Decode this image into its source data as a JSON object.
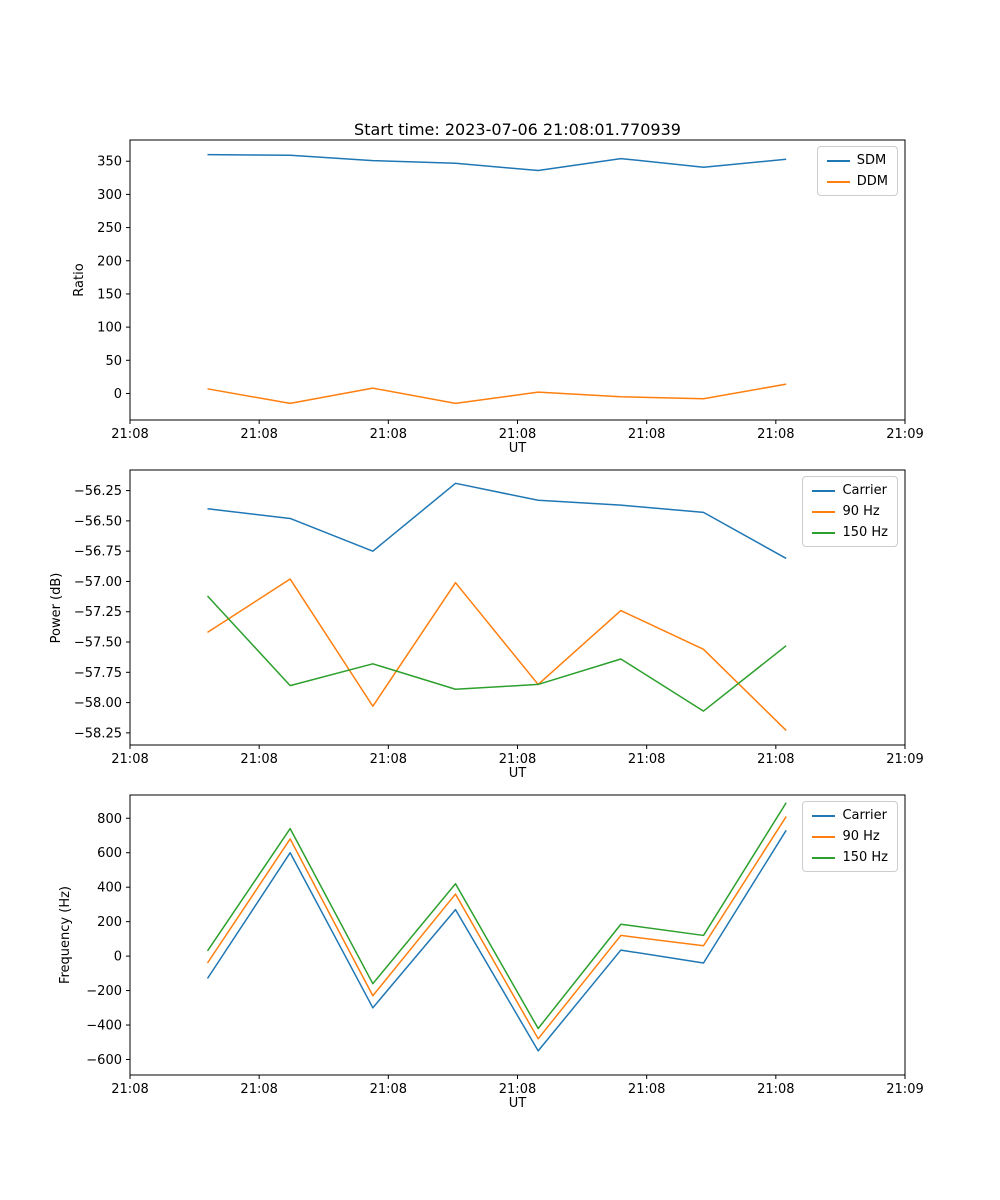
{
  "figure": {
    "background": "#ffffff",
    "accent_colors": {
      "blue": "#1f77b4",
      "orange": "#ff7f0e",
      "green": "#2ca02c"
    }
  },
  "chart_data": [
    {
      "type": "line",
      "title": "Start time: 2023-07-06 21:08:01.770939",
      "xlabel": "UT",
      "ylabel": "Ratio",
      "grid": false,
      "legend_position": "upper right",
      "xlim": [
        0,
        60
      ],
      "x_ticks": [
        0,
        10,
        20,
        30,
        40,
        50,
        60
      ],
      "x_tick_labels": [
        "21:08",
        "21:08",
        "21:08",
        "21:08",
        "21:08",
        "21:08",
        "21:09"
      ],
      "ylim": [
        -40,
        382
      ],
      "y_ticks": [
        0,
        50,
        100,
        150,
        200,
        250,
        300,
        350
      ],
      "y_tick_labels": [
        "0",
        "50",
        "100",
        "150",
        "200",
        "250",
        "300",
        "350"
      ],
      "x": [
        6,
        12.4,
        18.8,
        25.2,
        31.6,
        38,
        44.4,
        50.8
      ],
      "series": [
        {
          "name": "SDM",
          "color": "#1f77b4",
          "values": [
            360,
            359,
            351,
            347,
            336,
            354,
            341,
            353
          ]
        },
        {
          "name": "DDM",
          "color": "#ff7f0e",
          "values": [
            7,
            -15,
            8,
            -15,
            2,
            -5,
            -8,
            14
          ]
        }
      ]
    },
    {
      "type": "line",
      "title": "",
      "xlabel": "UT",
      "ylabel": "Power (dB)",
      "grid": false,
      "legend_position": "upper right",
      "xlim": [
        0,
        60
      ],
      "x_ticks": [
        0,
        10,
        20,
        30,
        40,
        50,
        60
      ],
      "x_tick_labels": [
        "21:08",
        "21:08",
        "21:08",
        "21:08",
        "21:08",
        "21:08",
        "21:09"
      ],
      "ylim": [
        -58.35,
        -56.08
      ],
      "y_ticks": [
        -58.25,
        -58.0,
        -57.75,
        -57.5,
        -57.25,
        -57.0,
        -56.75,
        -56.5,
        -56.25
      ],
      "y_tick_labels": [
        "−58.25",
        "−58.00",
        "−57.75",
        "−57.50",
        "−57.25",
        "−57.00",
        "−56.75",
        "−56.50",
        "−56.25"
      ],
      "x": [
        6,
        12.4,
        18.8,
        25.2,
        31.6,
        38,
        44.4,
        50.8
      ],
      "series": [
        {
          "name": "Carrier",
          "color": "#1f77b4",
          "values": [
            -56.4,
            -56.48,
            -56.75,
            -56.19,
            -56.33,
            -56.37,
            -56.43,
            -56.81
          ]
        },
        {
          "name": "90 Hz",
          "color": "#ff7f0e",
          "values": [
            -57.42,
            -56.98,
            -58.03,
            -57.01,
            -57.85,
            -57.24,
            -57.56,
            -58.23
          ]
        },
        {
          "name": "150 Hz",
          "color": "#2ca02c",
          "values": [
            -57.12,
            -57.86,
            -57.68,
            -57.89,
            -57.85,
            -57.64,
            -58.07,
            -57.53
          ]
        }
      ]
    },
    {
      "type": "line",
      "title": "",
      "xlabel": "UT",
      "ylabel": "Frequency (Hz)",
      "grid": false,
      "legend_position": "upper right",
      "xlim": [
        0,
        60
      ],
      "x_ticks": [
        0,
        10,
        20,
        30,
        40,
        50,
        60
      ],
      "x_tick_labels": [
        "21:08",
        "21:08",
        "21:08",
        "21:08",
        "21:08",
        "21:08",
        "21:09"
      ],
      "ylim": [
        -690,
        935
      ],
      "y_ticks": [
        -600,
        -400,
        -200,
        0,
        200,
        400,
        600,
        800
      ],
      "y_tick_labels": [
        "−600",
        "−400",
        "−200",
        "0",
        "200",
        "400",
        "600",
        "800"
      ],
      "x": [
        6,
        12.4,
        18.8,
        25.2,
        31.6,
        38,
        44.4,
        50.8
      ],
      "series": [
        {
          "name": "Carrier",
          "color": "#1f77b4",
          "values": [
            -130,
            600,
            -300,
            270,
            -550,
            35,
            -40,
            730
          ]
        },
        {
          "name": "90 Hz",
          "color": "#ff7f0e",
          "values": [
            -40,
            680,
            -230,
            360,
            -480,
            120,
            60,
            810
          ]
        },
        {
          "name": "150 Hz",
          "color": "#2ca02c",
          "values": [
            30,
            740,
            -160,
            420,
            -420,
            185,
            120,
            890
          ]
        }
      ]
    }
  ]
}
